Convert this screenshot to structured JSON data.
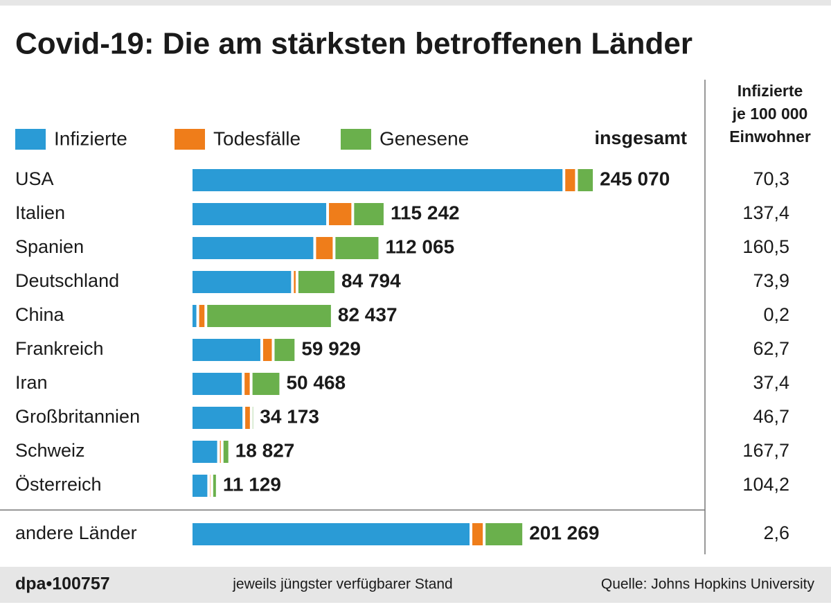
{
  "chart_data": {
    "type": "stacked-bar",
    "title": "Covid-19: Die am stärksten betroffenen Länder",
    "categories": [
      "USA",
      "Italien",
      "Spanien",
      "Deutschland",
      "China",
      "Frankreich",
      "Iran",
      "Großbritannien",
      "Schweiz",
      "Österreich",
      "andere Länder"
    ],
    "series": [
      {
        "name": "Infizierte",
        "color": "#2a9bd6",
        "values": [
          229700,
          83000,
          75000,
          61200,
          2400,
          42100,
          30600,
          31000,
          15300,
          9200,
          172000
        ]
      },
      {
        "name": "Todesfälle",
        "color": "#ef7d1a",
        "values": [
          6100,
          13900,
          10300,
          1100,
          3300,
          5400,
          3200,
          2900,
          500,
          200,
          6500
        ]
      },
      {
        "name": "Genesene",
        "color": "#6ab04c",
        "values": [
          9300,
          18300,
          26700,
          22400,
          76800,
          12400,
          16700,
          200,
          3000,
          1700,
          22800
        ]
      }
    ],
    "totals": {
      "title": "insgesamt",
      "values": [
        245070,
        115242,
        112065,
        84794,
        82437,
        59929,
        50468,
        34173,
        18827,
        11129,
        201269
      ],
      "value_labels": [
        "245 070",
        "115 242",
        "112 065",
        "84 794",
        "82 437",
        "59 929",
        "50 468",
        "34 173",
        "18 827",
        "11 129",
        "201 269"
      ]
    },
    "per_100k": {
      "title": [
        "Infizierte",
        "je 100 000",
        "Einwohner"
      ],
      "values": [
        70.3,
        137.4,
        160.5,
        73.9,
        0.2,
        62.7,
        37.4,
        46.7,
        167.7,
        104.2,
        2.6
      ],
      "value_labels": [
        "70,3",
        "137,4",
        "160,5",
        "73,9",
        "0,2",
        "62,7",
        "37,4",
        "46,7",
        "167,7",
        "104,2",
        "2,6"
      ]
    },
    "footer": {
      "id": "dpa•100757",
      "note": "jeweils jüngster verfügbarer Stand",
      "source": "Quelle: Johns Hopkins University"
    }
  }
}
